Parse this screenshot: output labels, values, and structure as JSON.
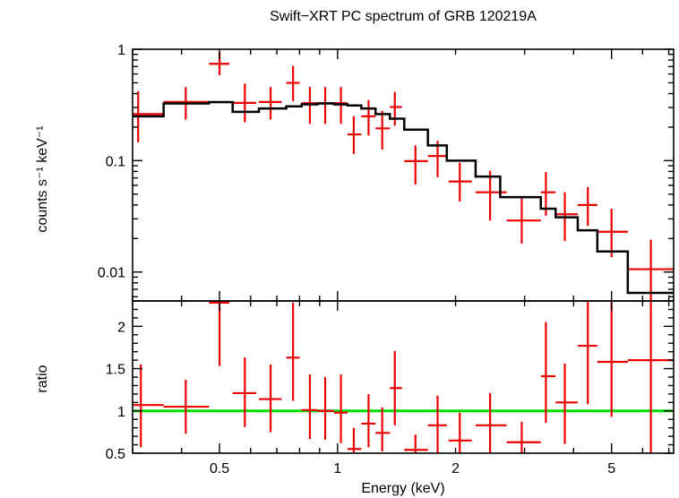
{
  "chart_data": {
    "type": "line",
    "title": "Swift−XRT PC spectrum of GRB 120219A",
    "xlabel": "Energy (keV)",
    "xscale": "log",
    "xlim": [
      0.3,
      7.2
    ],
    "x_ticks": [
      {
        "value": 0.5,
        "label": "0.5"
      },
      {
        "value": 1,
        "label": "1"
      },
      {
        "value": 2,
        "label": "2"
      },
      {
        "value": 5,
        "label": "5"
      }
    ],
    "colors": {
      "data": "#ee0000",
      "model": "#000000",
      "unity": "#00e000",
      "frame": "#000000"
    },
    "panels": [
      {
        "name": "spectrum",
        "ylabel": "counts s⁻¹ keV⁻¹",
        "yscale": "log",
        "ylim": [
          0.0055,
          1.0
        ],
        "y_ticks": [
          {
            "value": 1,
            "label": "1"
          },
          {
            "value": 0.1,
            "label": "0.1"
          },
          {
            "value": 0.01,
            "label": "0.01"
          }
        ],
        "series": [
          {
            "name": "data",
            "style": "crosshair-errorbars",
            "points": [
              {
                "x": 0.31,
                "xlo": 0.3,
                "xhi": 0.36,
                "y": 0.262,
                "ylo": 0.146,
                "yhi": 0.42
              },
              {
                "x": 0.41,
                "xlo": 0.36,
                "xhi": 0.47,
                "y": 0.336,
                "ylo": 0.234,
                "yhi": 0.458
              },
              {
                "x": 0.5,
                "xlo": 0.47,
                "xhi": 0.53,
                "y": 0.74,
                "ylo": 0.583,
                "yhi": 0.943
              },
              {
                "x": 0.58,
                "xlo": 0.54,
                "xhi": 0.62,
                "y": 0.33,
                "ylo": 0.221,
                "yhi": 0.492
              },
              {
                "x": 0.675,
                "xlo": 0.63,
                "xhi": 0.72,
                "y": 0.336,
                "ylo": 0.234,
                "yhi": 0.458
              },
              {
                "x": 0.77,
                "xlo": 0.74,
                "xhi": 0.8,
                "y": 0.499,
                "ylo": 0.342,
                "yhi": 0.71
              },
              {
                "x": 0.85,
                "xlo": 0.81,
                "xhi": 0.89,
                "y": 0.328,
                "ylo": 0.214,
                "yhi": 0.458
              },
              {
                "x": 0.93,
                "xlo": 0.89,
                "xhi": 0.98,
                "y": 0.328,
                "ylo": 0.214,
                "yhi": 0.458
              },
              {
                "x": 1.02,
                "xlo": 0.98,
                "xhi": 1.06,
                "y": 0.328,
                "ylo": 0.214,
                "yhi": 0.458
              },
              {
                "x": 1.1,
                "xlo": 1.06,
                "xhi": 1.15,
                "y": 0.172,
                "ylo": 0.115,
                "yhi": 0.25
              },
              {
                "x": 1.2,
                "xlo": 1.15,
                "xhi": 1.25,
                "y": 0.25,
                "ylo": 0.168,
                "yhi": 0.35
              },
              {
                "x": 1.3,
                "xlo": 1.25,
                "xhi": 1.36,
                "y": 0.195,
                "ylo": 0.126,
                "yhi": 0.28
              },
              {
                "x": 1.4,
                "xlo": 1.36,
                "xhi": 1.46,
                "y": 0.303,
                "ylo": 0.206,
                "yhi": 0.414
              },
              {
                "x": 1.58,
                "xlo": 1.48,
                "xhi": 1.7,
                "y": 0.099,
                "ylo": 0.061,
                "yhi": 0.137
              },
              {
                "x": 1.8,
                "xlo": 1.7,
                "xhi": 1.9,
                "y": 0.11,
                "ylo": 0.071,
                "yhi": 0.151
              },
              {
                "x": 2.05,
                "xlo": 1.92,
                "xhi": 2.2,
                "y": 0.065,
                "ylo": 0.043,
                "yhi": 0.096
              },
              {
                "x": 2.45,
                "xlo": 2.25,
                "xhi": 2.7,
                "y": 0.052,
                "ylo": 0.029,
                "yhi": 0.081
              },
              {
                "x": 2.95,
                "xlo": 2.7,
                "xhi": 3.3,
                "y": 0.029,
                "ylo": 0.018,
                "yhi": 0.046
              },
              {
                "x": 3.4,
                "xlo": 3.3,
                "xhi": 3.6,
                "y": 0.052,
                "ylo": 0.032,
                "yhi": 0.079
              },
              {
                "x": 3.8,
                "xlo": 3.6,
                "xhi": 4.1,
                "y": 0.033,
                "ylo": 0.019,
                "yhi": 0.052
              },
              {
                "x": 4.35,
                "xlo": 4.1,
                "xhi": 4.6,
                "y": 0.04,
                "ylo": 0.026,
                "yhi": 0.058
              },
              {
                "x": 5.0,
                "xlo": 4.6,
                "xhi": 5.5,
                "y": 0.023,
                "ylo": 0.0136,
                "yhi": 0.037
              },
              {
                "x": 6.3,
                "xlo": 5.5,
                "xhi": 7.2,
                "y": 0.0106,
                "ylo": 0.0055,
                "yhi": 0.0195
              }
            ]
          },
          {
            "name": "model",
            "style": "step",
            "steps": [
              {
                "x0": 0.3,
                "x1": 0.36,
                "y": 0.25
              },
              {
                "x0": 0.36,
                "x1": 0.47,
                "y": 0.326
              },
              {
                "x0": 0.47,
                "x1": 0.54,
                "y": 0.335
              },
              {
                "x0": 0.54,
                "x1": 0.63,
                "y": 0.274
              },
              {
                "x0": 0.63,
                "x1": 0.74,
                "y": 0.294
              },
              {
                "x0": 0.74,
                "x1": 0.81,
                "y": 0.307
              },
              {
                "x0": 0.81,
                "x1": 0.89,
                "y": 0.32
              },
              {
                "x0": 0.89,
                "x1": 0.98,
                "y": 0.326
              },
              {
                "x0": 0.98,
                "x1": 1.06,
                "y": 0.32
              },
              {
                "x0": 1.06,
                "x1": 1.15,
                "y": 0.313
              },
              {
                "x0": 1.15,
                "x1": 1.25,
                "y": 0.294
              },
              {
                "x0": 1.25,
                "x1": 1.36,
                "y": 0.262
              },
              {
                "x0": 1.36,
                "x1": 1.48,
                "y": 0.238
              },
              {
                "x0": 1.48,
                "x1": 1.7,
                "y": 0.19
              },
              {
                "x0": 1.7,
                "x1": 1.9,
                "y": 0.137
              },
              {
                "x0": 1.9,
                "x1": 2.25,
                "y": 0.1
              },
              {
                "x0": 2.25,
                "x1": 2.6,
                "y": 0.072
              },
              {
                "x0": 2.6,
                "x1": 3.3,
                "y": 0.047
              },
              {
                "x0": 3.3,
                "x1": 3.6,
                "y": 0.037
              },
              {
                "x0": 3.6,
                "x1": 4.1,
                "y": 0.031
              },
              {
                "x0": 4.1,
                "x1": 4.6,
                "y": 0.0237
              },
              {
                "x0": 4.6,
                "x1": 5.5,
                "y": 0.0153
              },
              {
                "x0": 5.5,
                "x1": 7.2,
                "y": 0.0065
              }
            ]
          }
        ]
      },
      {
        "name": "ratio",
        "ylabel": "ratio",
        "yscale": "linear",
        "ylim": [
          0.5,
          2.3
        ],
        "y_ticks": [
          {
            "value": 0.5,
            "label": "0.5"
          },
          {
            "value": 1,
            "label": "1"
          },
          {
            "value": 1.5,
            "label": "1.5"
          },
          {
            "value": 2,
            "label": "2"
          }
        ],
        "reference_line": 1.0,
        "series": [
          {
            "name": "ratio",
            "style": "crosshair-errorbars",
            "points": [
              {
                "x": 0.315,
                "xlo": 0.3,
                "xhi": 0.36,
                "y": 1.07,
                "ylo": 0.57,
                "yhi": 1.55
              },
              {
                "x": 0.41,
                "xlo": 0.36,
                "xhi": 0.47,
                "y": 1.05,
                "ylo": 0.73,
                "yhi": 1.37
              },
              {
                "x": 0.5,
                "xlo": 0.47,
                "xhi": 0.53,
                "y": 2.28,
                "ylo": 1.53,
                "yhi": 2.3
              },
              {
                "x": 0.58,
                "xlo": 0.54,
                "xhi": 0.62,
                "y": 1.21,
                "ylo": 0.81,
                "yhi": 1.63
              },
              {
                "x": 0.675,
                "xlo": 0.63,
                "xhi": 0.72,
                "y": 1.14,
                "ylo": 0.75,
                "yhi": 1.55
              },
              {
                "x": 0.77,
                "xlo": 0.74,
                "xhi": 0.8,
                "y": 1.63,
                "ylo": 1.12,
                "yhi": 2.28
              },
              {
                "x": 0.85,
                "xlo": 0.81,
                "xhi": 0.89,
                "y": 1.01,
                "ylo": 0.67,
                "yhi": 1.43
              },
              {
                "x": 0.93,
                "xlo": 0.89,
                "xhi": 0.98,
                "y": 1.0,
                "ylo": 0.66,
                "yhi": 1.4
              },
              {
                "x": 1.02,
                "xlo": 0.98,
                "xhi": 1.06,
                "y": 0.98,
                "ylo": 0.62,
                "yhi": 1.43
              },
              {
                "x": 1.1,
                "xlo": 1.06,
                "xhi": 1.15,
                "y": 0.55,
                "ylo": 0.5,
                "yhi": 0.8
              },
              {
                "x": 1.2,
                "xlo": 1.15,
                "xhi": 1.25,
                "y": 0.85,
                "ylo": 0.57,
                "yhi": 1.2
              },
              {
                "x": 1.3,
                "xlo": 1.25,
                "xhi": 1.36,
                "y": 0.74,
                "ylo": 0.52,
                "yhi": 1.04
              },
              {
                "x": 1.4,
                "xlo": 1.36,
                "xhi": 1.46,
                "y": 1.27,
                "ylo": 0.83,
                "yhi": 1.71
              },
              {
                "x": 1.58,
                "xlo": 1.48,
                "xhi": 1.7,
                "y": 0.54,
                "ylo": 0.5,
                "yhi": 0.72
              },
              {
                "x": 1.8,
                "xlo": 1.7,
                "xhi": 1.9,
                "y": 0.83,
                "ylo": 0.5,
                "yhi": 1.18
              },
              {
                "x": 2.05,
                "xlo": 1.92,
                "xhi": 2.2,
                "y": 0.65,
                "ylo": 0.5,
                "yhi": 0.98
              },
              {
                "x": 2.45,
                "xlo": 2.25,
                "xhi": 2.7,
                "y": 0.83,
                "ylo": 0.5,
                "yhi": 1.21
              },
              {
                "x": 2.95,
                "xlo": 2.7,
                "xhi": 3.3,
                "y": 0.63,
                "ylo": 0.5,
                "yhi": 0.87
              },
              {
                "x": 3.4,
                "xlo": 3.3,
                "xhi": 3.6,
                "y": 1.41,
                "ylo": 0.86,
                "yhi": 2.05
              },
              {
                "x": 3.8,
                "xlo": 3.6,
                "xhi": 4.1,
                "y": 1.1,
                "ylo": 0.61,
                "yhi": 1.56
              },
              {
                "x": 4.35,
                "xlo": 4.1,
                "xhi": 4.6,
                "y": 1.77,
                "ylo": 1.08,
                "yhi": 2.3
              },
              {
                "x": 5.0,
                "xlo": 4.6,
                "xhi": 5.5,
                "y": 1.58,
                "ylo": 0.93,
                "yhi": 2.3
              },
              {
                "x": 6.3,
                "xlo": 5.5,
                "xhi": 7.2,
                "y": 1.6,
                "ylo": 0.5,
                "yhi": 2.3
              }
            ]
          }
        ]
      }
    ]
  }
}
